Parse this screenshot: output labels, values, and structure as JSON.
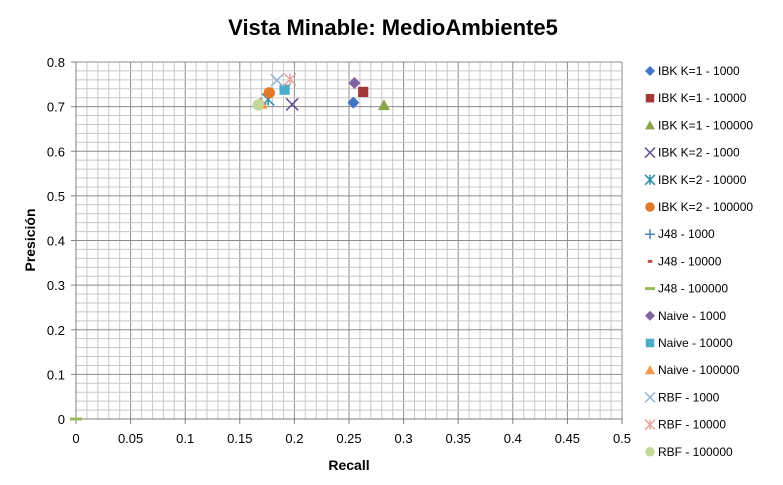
{
  "chart_data": {
    "type": "scatter",
    "title": "Vista Minable: MedioAmbiente5",
    "xlabel": "Recall",
    "ylabel": "Presición",
    "xlim": [
      0,
      0.5
    ],
    "ylim": [
      0,
      0.8
    ],
    "x_ticks": [
      "0",
      "0.05",
      "0.1",
      "0.15",
      "0.2",
      "0.25",
      "0.3",
      "0.35",
      "0.4",
      "0.45",
      "0.5"
    ],
    "y_ticks": [
      "0",
      "0.1",
      "0.2",
      "0.3",
      "0.4",
      "0.5",
      "0.6",
      "0.7",
      "0.8"
    ],
    "grid": true,
    "legend_position": "right",
    "series": [
      {
        "name": "IBK K=1 - 1000",
        "marker": "diamond",
        "color": "#4472C4",
        "points": [
          [
            0.254,
            0.709
          ]
        ]
      },
      {
        "name": "IBK K=1 - 10000",
        "marker": "square",
        "color": "#A5393A",
        "points": [
          [
            0.263,
            0.733
          ]
        ]
      },
      {
        "name": "IBK K=1 - 100000",
        "marker": "triangle",
        "color": "#8EA44A",
        "points": [
          [
            0.282,
            0.703
          ]
        ]
      },
      {
        "name": "IBK K=2 - 1000",
        "marker": "x",
        "color": "#5E4A8A",
        "points": [
          [
            0.198,
            0.705
          ]
        ]
      },
      {
        "name": "IBK K=2 - 10000",
        "marker": "star",
        "color": "#2E8EA8",
        "points": [
          [
            0.176,
            0.716
          ]
        ]
      },
      {
        "name": "IBK K=2 - 100000",
        "marker": "circle",
        "color": "#E07B2C",
        "points": [
          [
            0.177,
            0.731
          ]
        ]
      },
      {
        "name": "J48 - 1000",
        "marker": "plus",
        "color": "#4F81BD",
        "points": [
          [
            0.169,
            0.706
          ]
        ]
      },
      {
        "name": "J48 - 10000",
        "marker": "dash",
        "color": "#C0504D",
        "points": [
          [
            0.0,
            0.0
          ]
        ]
      },
      {
        "name": "J48 - 100000",
        "marker": "longdash",
        "color": "#9BBB59",
        "points": [
          [
            0.0,
            0.0
          ]
        ]
      },
      {
        "name": "Naive - 1000",
        "marker": "diamond",
        "color": "#8064A2",
        "points": [
          [
            0.255,
            0.753
          ]
        ]
      },
      {
        "name": "Naive - 10000",
        "marker": "square",
        "color": "#4BACC6",
        "points": [
          [
            0.191,
            0.738
          ]
        ]
      },
      {
        "name": "Naive - 100000",
        "marker": "triangle",
        "color": "#F79646",
        "points": [
          [
            0.17,
            0.706
          ]
        ]
      },
      {
        "name": "RBF - 1000",
        "marker": "x",
        "color": "#95B3D7",
        "points": [
          [
            0.184,
            0.759
          ]
        ]
      },
      {
        "name": "RBF - 10000",
        "marker": "star",
        "color": "#E6A0A0",
        "points": [
          [
            0.196,
            0.761
          ]
        ]
      },
      {
        "name": "RBF - 100000",
        "marker": "circle",
        "color": "#C4D79B",
        "points": [
          [
            0.167,
            0.704
          ]
        ]
      }
    ]
  }
}
